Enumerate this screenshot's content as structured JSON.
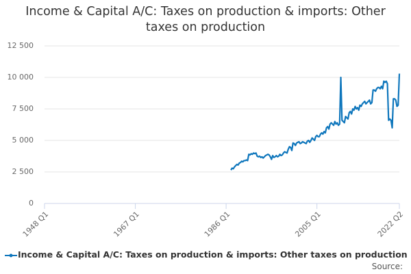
{
  "chart_data": {
    "type": "line",
    "title": "Income & Capital A/C: Taxes on production & imports: Other taxes on production",
    "source": "Source:",
    "x": [
      "1987 Q1",
      "1987 Q2",
      "1987 Q3",
      "1987 Q4",
      "1988 Q1",
      "1988 Q2",
      "1988 Q3",
      "1988 Q4",
      "1989 Q1",
      "1989 Q2",
      "1989 Q3",
      "1989 Q4",
      "1990 Q1",
      "1990 Q2",
      "1990 Q3",
      "1990 Q4",
      "1991 Q1",
      "1991 Q2",
      "1991 Q3",
      "1991 Q4",
      "1992 Q1",
      "1992 Q2",
      "1992 Q3",
      "1992 Q4",
      "1993 Q1",
      "1993 Q2",
      "1993 Q3",
      "1993 Q4",
      "1994 Q1",
      "1994 Q2",
      "1994 Q3",
      "1994 Q4",
      "1995 Q1",
      "1995 Q2",
      "1995 Q3",
      "1995 Q4",
      "1996 Q1",
      "1996 Q2",
      "1996 Q3",
      "1996 Q4",
      "1997 Q1",
      "1997 Q2",
      "1997 Q3",
      "1997 Q4",
      "1998 Q1",
      "1998 Q2",
      "1998 Q3",
      "1998 Q4",
      "1999 Q1",
      "1999 Q2",
      "1999 Q3",
      "1999 Q4",
      "2000 Q1",
      "2000 Q2",
      "2000 Q3",
      "2000 Q4",
      "2001 Q1",
      "2001 Q2",
      "2001 Q3",
      "2001 Q4",
      "2002 Q1",
      "2002 Q2",
      "2002 Q3",
      "2002 Q4",
      "2003 Q1",
      "2003 Q2",
      "2003 Q3",
      "2003 Q4",
      "2004 Q1",
      "2004 Q2",
      "2004 Q3",
      "2004 Q4",
      "2005 Q1",
      "2005 Q2",
      "2005 Q3",
      "2005 Q4",
      "2006 Q1",
      "2006 Q2",
      "2006 Q3",
      "2006 Q4",
      "2007 Q1",
      "2007 Q2",
      "2007 Q3",
      "2007 Q4",
      "2008 Q1",
      "2008 Q2",
      "2008 Q3",
      "2008 Q4",
      "2009 Q1",
      "2009 Q2",
      "2009 Q3",
      "2009 Q4",
      "2010 Q1",
      "2010 Q2",
      "2010 Q3",
      "2010 Q4",
      "2011 Q1",
      "2011 Q2",
      "2011 Q3",
      "2011 Q4",
      "2012 Q1",
      "2012 Q2",
      "2012 Q3",
      "2012 Q4",
      "2013 Q1",
      "2013 Q2",
      "2013 Q3",
      "2013 Q4",
      "2014 Q1",
      "2014 Q2",
      "2014 Q3",
      "2014 Q4",
      "2015 Q1",
      "2015 Q2",
      "2015 Q3",
      "2015 Q4",
      "2016 Q1",
      "2016 Q2",
      "2016 Q3",
      "2016 Q4",
      "2017 Q1",
      "2017 Q2",
      "2017 Q3",
      "2017 Q4",
      "2018 Q1",
      "2018 Q2",
      "2018 Q3",
      "2018 Q4",
      "2019 Q1",
      "2019 Q2",
      "2019 Q3",
      "2019 Q4",
      "2020 Q1",
      "2020 Q2",
      "2020 Q3",
      "2020 Q4",
      "2021 Q1",
      "2021 Q2",
      "2021 Q3",
      "2021 Q4",
      "2022 Q1",
      "2022 Q2"
    ],
    "series": [
      {
        "name": "Income & Capital A/C: Taxes on production & imports: Other taxes on production",
        "color": "#0e76bc",
        "values": [
          2650,
          2800,
          2750,
          2900,
          3000,
          3100,
          3050,
          3200,
          3250,
          3350,
          3300,
          3400,
          3400,
          3450,
          3400,
          3900,
          3850,
          3950,
          3900,
          4000,
          3950,
          4000,
          3750,
          3700,
          3750,
          3650,
          3700,
          3600,
          3700,
          3800,
          3850,
          3900,
          3850,
          3700,
          3500,
          3800,
          3650,
          3700,
          3800,
          3700,
          3750,
          3900,
          3800,
          3850,
          4000,
          4100,
          4050,
          4000,
          4300,
          4500,
          4450,
          4200,
          4800,
          4750,
          4600,
          4800,
          4850,
          4900,
          4750,
          4800,
          4900,
          4850,
          4800,
          4750,
          4950,
          5000,
          4850,
          5000,
          5200,
          5100,
          5000,
          5300,
          5400,
          5300,
          5300,
          5500,
          5600,
          5500,
          5700,
          5600,
          6000,
          6100,
          5900,
          6300,
          6400,
          6300,
          6200,
          6500,
          6300,
          6400,
          6200,
          6300,
          10000,
          6600,
          6500,
          6400,
          6900,
          6800,
          6700,
          7200,
          7300,
          7100,
          7500,
          7400,
          7700,
          7500,
          7600,
          7400,
          7800,
          7700,
          7900,
          8000,
          8100,
          7900,
          8000,
          8100,
          8200,
          7900,
          8000,
          9000,
          9000,
          8900,
          9100,
          9200,
          9200,
          9100,
          9300,
          9100,
          9700,
          9600,
          9700,
          9500,
          6600,
          6700,
          6600,
          6000,
          8300,
          8300,
          8200,
          7700,
          7800,
          10300
        ]
      }
    ],
    "xlim": [
      "1948 Q1",
      "2022 Q2"
    ],
    "xticks": [
      "1948 Q1",
      "1967 Q1",
      "1986 Q1",
      "2005 Q1",
      "2022 Q2"
    ],
    "ylim": [
      0,
      12500
    ],
    "yticks": [
      0,
      {
        "value": 2500,
        "label": "2 500"
      },
      {
        "value": 5000,
        "label": "5 000"
      },
      {
        "value": 7500,
        "label": "7 500"
      },
      {
        "value": 10000,
        "label": "10 000"
      },
      {
        "value": 12500,
        "label": "12 500"
      }
    ],
    "grid": true
  }
}
